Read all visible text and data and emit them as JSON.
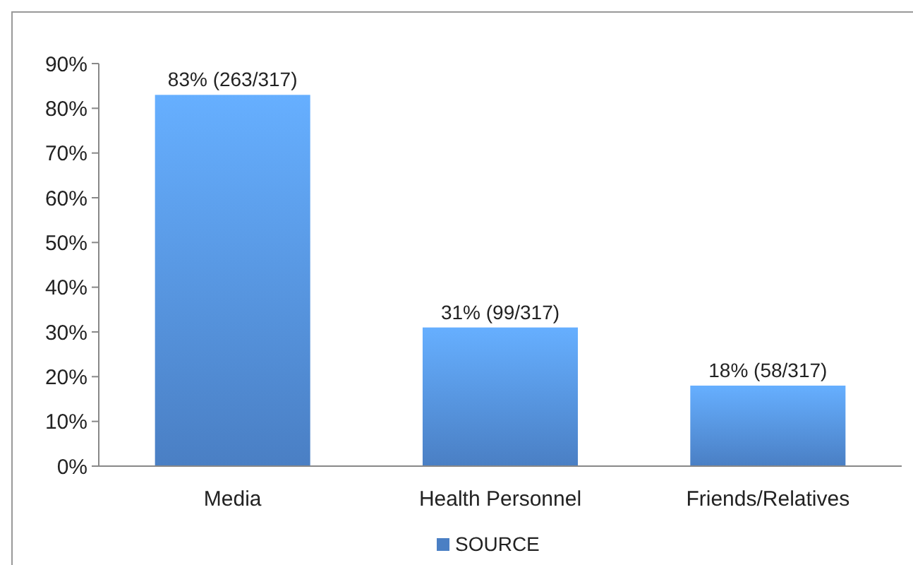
{
  "chart_data": {
    "type": "bar",
    "categories": [
      "Media",
      "Health Personnel",
      "Friends/Relatives"
    ],
    "series": [
      {
        "name": "SOURCE",
        "color": "#4a7fc4",
        "values": [
          83,
          31,
          18
        ],
        "value_labels": [
          "83% (263/317)",
          "31% (99/317)",
          "18% (58/317)"
        ]
      }
    ],
    "ylim": [
      0,
      90
    ],
    "yticks": [
      {
        "value": 0,
        "label": "0%"
      },
      {
        "value": 10,
        "label": "10%"
      },
      {
        "value": 20,
        "label": "20%"
      },
      {
        "value": 30,
        "label": "30%"
      },
      {
        "value": 40,
        "label": "40%"
      },
      {
        "value": 50,
        "label": "50%"
      },
      {
        "value": 60,
        "label": "60%"
      },
      {
        "value": 70,
        "label": "70%"
      },
      {
        "value": 80,
        "label": "80%"
      },
      {
        "value": 90,
        "label": "90%"
      }
    ],
    "grid": false,
    "legend": "bottom"
  }
}
